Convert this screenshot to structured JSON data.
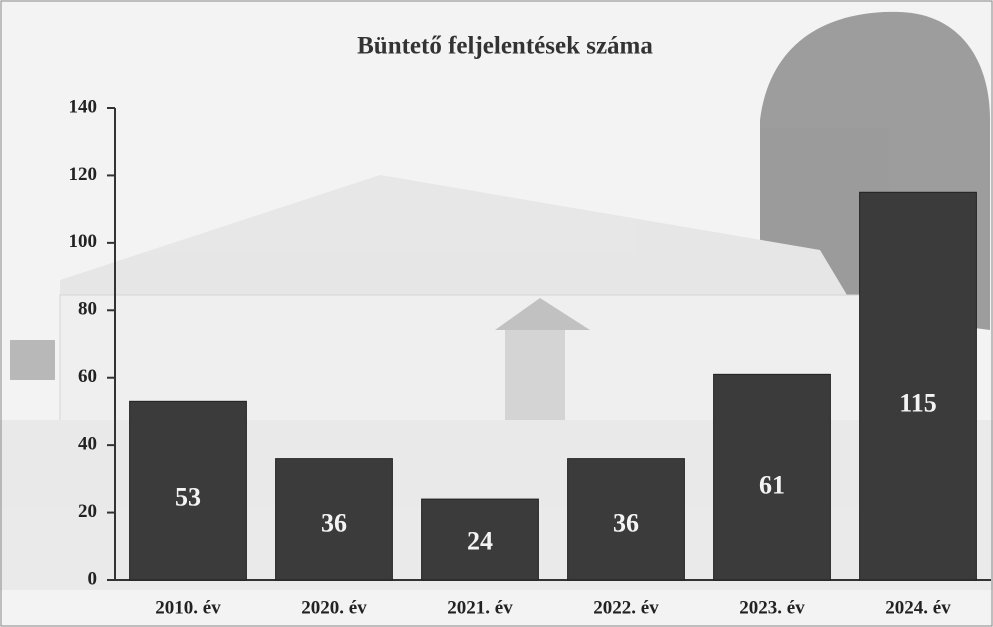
{
  "chart_data": {
    "type": "bar",
    "title": "Büntető feljelentések száma",
    "categories": [
      "2010. év",
      "2020. év",
      "2021. év",
      "2022. év",
      "2023. év",
      "2024. év"
    ],
    "values": [
      53,
      36,
      24,
      36,
      61,
      115
    ],
    "color": "#3b3b3b",
    "ylim": [
      0,
      140
    ],
    "yticks": [
      0,
      20,
      40,
      60,
      80,
      100,
      120,
      140
    ],
    "grid": false
  }
}
